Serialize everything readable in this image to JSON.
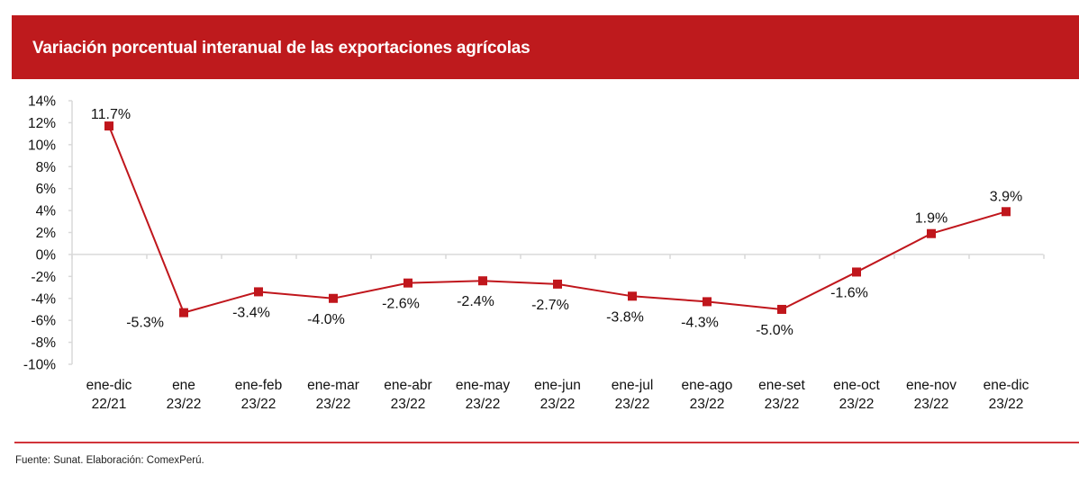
{
  "header": {
    "title": "Variación porcentual interanual de las exportaciones agrícolas"
  },
  "footer": {
    "source": "Fuente: Sunat. Elaboración: ComexPerú."
  },
  "colors": {
    "title_bar": "#be1a1d",
    "series": "#c0161c",
    "axis": "#d9d9d9",
    "footer_rule": "#d1343a"
  },
  "chart_data": {
    "type": "line",
    "title": "Variación porcentual interanual de las exportaciones agrícolas",
    "xlabel": "",
    "ylabel": "",
    "ylim": [
      -10,
      14
    ],
    "y_ticks": [
      14,
      12,
      10,
      8,
      6,
      4,
      2,
      0,
      -2,
      -4,
      -6,
      -8,
      -10
    ],
    "y_tick_labels": [
      "14%",
      "12%",
      "10%",
      "8%",
      "6%",
      "4%",
      "2%",
      "0%",
      "-2%",
      "-4%",
      "-6%",
      "-8%",
      "-10%"
    ],
    "grid": false,
    "legend": "none",
    "categories": [
      [
        "ene-dic",
        "22/21"
      ],
      [
        "ene",
        "23/22"
      ],
      [
        "ene-feb",
        "23/22"
      ],
      [
        "ene-mar",
        "23/22"
      ],
      [
        "ene-abr",
        "23/22"
      ],
      [
        "ene-may",
        "23/22"
      ],
      [
        "ene-jun",
        "23/22"
      ],
      [
        "ene-jul",
        "23/22"
      ],
      [
        "ene-ago",
        "23/22"
      ],
      [
        "ene-set",
        "23/22"
      ],
      [
        "ene-oct",
        "23/22"
      ],
      [
        "ene-nov",
        "23/22"
      ],
      [
        "ene-dic",
        "23/22"
      ]
    ],
    "series": [
      {
        "name": "Variación porcentual interanual",
        "values": [
          11.7,
          -5.3,
          -3.4,
          -4.0,
          -2.6,
          -2.4,
          -2.7,
          -3.8,
          -4.3,
          -5.0,
          -1.6,
          1.9,
          3.9
        ],
        "labels": [
          "11.7%",
          "-5.3%",
          "-3.4%",
          "-4.0%",
          "-2.6%",
          "-2.4%",
          "-2.7%",
          "-3.8%",
          "-4.3%",
          "-5.0%",
          "-1.6%",
          "1.9%",
          "3.9%"
        ],
        "label_position": [
          "above",
          "left",
          "below",
          "below",
          "below",
          "below",
          "below",
          "below",
          "below",
          "below",
          "below",
          "above",
          "above"
        ],
        "marker": "square"
      }
    ]
  }
}
